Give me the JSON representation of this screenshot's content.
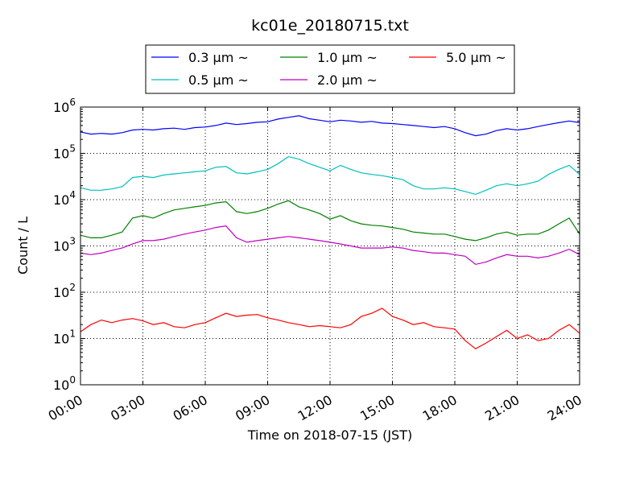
{
  "chart_data": {
    "type": "line",
    "title": "kc01e_20180715.txt",
    "xlabel": "Time on 2018-07-15 (JST)",
    "ylabel": "Count / L",
    "yscale": "log",
    "ylim": [
      1,
      1000000
    ],
    "xlim": [
      "00:00",
      "24:00"
    ],
    "grid": true,
    "legend_position": "top-center",
    "x_ticks": [
      "00:00",
      "03:00",
      "06:00",
      "09:00",
      "12:00",
      "15:00",
      "18:00",
      "21:00",
      "24:00"
    ],
    "y_ticks": [
      {
        "base": "10",
        "exp": "0"
      },
      {
        "base": "10",
        "exp": "1"
      },
      {
        "base": "10",
        "exp": "2"
      },
      {
        "base": "10",
        "exp": "3"
      },
      {
        "base": "10",
        "exp": "4"
      },
      {
        "base": "10",
        "exp": "5"
      },
      {
        "base": "10",
        "exp": "6"
      }
    ],
    "x_hours": [
      0,
      0.5,
      1,
      1.5,
      2,
      2.5,
      3,
      3.5,
      4,
      4.5,
      5,
      5.5,
      6,
      6.5,
      7,
      7.5,
      8,
      8.5,
      9,
      9.5,
      10,
      10.5,
      11,
      11.5,
      12,
      12.5,
      13,
      13.5,
      14,
      14.5,
      15,
      15.5,
      16,
      16.5,
      17,
      17.5,
      18,
      18.5,
      19,
      19.5,
      20,
      20.5,
      21,
      21.5,
      22,
      22.5,
      23,
      23.5,
      24
    ],
    "series": [
      {
        "name": "0.3 μm ~",
        "color": "#0000ff",
        "values": [
          290000,
          260000,
          270000,
          260000,
          280000,
          320000,
          330000,
          320000,
          340000,
          350000,
          330000,
          360000,
          370000,
          400000,
          450000,
          420000,
          440000,
          470000,
          480000,
          550000,
          600000,
          650000,
          560000,
          520000,
          480000,
          520000,
          500000,
          470000,
          490000,
          450000,
          440000,
          420000,
          400000,
          380000,
          360000,
          380000,
          340000,
          280000,
          240000,
          260000,
          310000,
          340000,
          320000,
          340000,
          380000,
          420000,
          460000,
          500000,
          460000
        ]
      },
      {
        "name": "0.5 μm ~",
        "color": "#00bfbf",
        "values": [
          18000,
          16000,
          16000,
          17000,
          19000,
          30000,
          32000,
          30000,
          34000,
          36000,
          38000,
          40000,
          42000,
          50000,
          52000,
          38000,
          36000,
          40000,
          45000,
          60000,
          85000,
          75000,
          60000,
          50000,
          42000,
          55000,
          45000,
          38000,
          35000,
          33000,
          30000,
          27000,
          20000,
          17000,
          17000,
          18000,
          17000,
          15000,
          13000,
          16000,
          20000,
          22000,
          20000,
          22000,
          25000,
          35000,
          45000,
          55000,
          35000
        ]
      },
      {
        "name": "1.0 μm ~",
        "color": "#008000",
        "values": [
          1700,
          1500,
          1500,
          1700,
          2000,
          4000,
          4500,
          4000,
          5000,
          6000,
          6500,
          7000,
          7500,
          8500,
          9000,
          5500,
          5000,
          5500,
          6500,
          8000,
          9500,
          7000,
          6000,
          5000,
          3800,
          4500,
          3500,
          3000,
          2800,
          2700,
          2500,
          2300,
          2000,
          1900,
          1800,
          1800,
          1600,
          1400,
          1300,
          1500,
          1800,
          2000,
          1700,
          1800,
          1800,
          2200,
          3000,
          4000,
          1800
        ]
      },
      {
        "name": "2.0 μm ~",
        "color": "#bf00bf",
        "values": [
          700,
          650,
          700,
          800,
          900,
          1100,
          1300,
          1300,
          1400,
          1600,
          1800,
          2000,
          2200,
          2500,
          2700,
          1500,
          1200,
          1300,
          1400,
          1500,
          1600,
          1500,
          1400,
          1300,
          1200,
          1100,
          1000,
          900,
          900,
          900,
          950,
          900,
          800,
          750,
          700,
          700,
          650,
          600,
          400,
          450,
          550,
          650,
          600,
          600,
          550,
          600,
          700,
          850,
          650
        ]
      },
      {
        "name": "5.0 μm ~",
        "color": "#ff0000",
        "values": [
          14,
          20,
          25,
          22,
          25,
          27,
          24,
          20,
          22,
          18,
          17,
          20,
          22,
          28,
          35,
          30,
          32,
          33,
          28,
          25,
          22,
          20,
          18,
          19,
          18,
          17,
          20,
          30,
          35,
          45,
          30,
          25,
          20,
          22,
          18,
          17,
          16,
          9,
          6,
          8,
          11,
          15,
          10,
          12,
          9,
          10,
          15,
          20,
          13
        ]
      }
    ]
  }
}
